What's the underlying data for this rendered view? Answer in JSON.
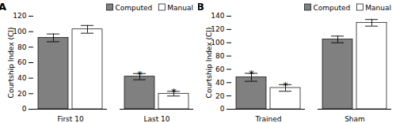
{
  "chart_data": [
    {
      "type": "bar",
      "title": "A",
      "categories": [
        "First 10",
        "Last 10"
      ],
      "series": [
        {
          "name": "Computed",
          "color": "#808080",
          "values": [
            92,
            42
          ],
          "errors": [
            5,
            4
          ]
        },
        {
          "name": "Manual",
          "color": "#ffffff",
          "values": [
            103,
            20
          ],
          "errors": [
            5,
            3
          ]
        }
      ],
      "annotations": [
        {
          "text": "*",
          "category": "Last 10",
          "series": "Computed"
        },
        {
          "text": "*",
          "category": "Last 10",
          "series": "Manual"
        }
      ],
      "ylabel": "Courtship Index (CI)",
      "ylim": [
        0,
        120
      ],
      "yticks": [
        0,
        20,
        40,
        60,
        80,
        100,
        120
      ],
      "legend": "upper right"
    },
    {
      "type": "bar",
      "title": "B",
      "categories": [
        "Trained",
        "Sham"
      ],
      "series": [
        {
          "name": "Computed",
          "color": "#808080",
          "values": [
            48,
            105
          ],
          "errors": [
            6,
            5
          ]
        },
        {
          "name": "Manual",
          "color": "#ffffff",
          "values": [
            32,
            130
          ],
          "errors": [
            5,
            5
          ]
        }
      ],
      "annotations": [
        {
          "text": "*",
          "category": "Trained",
          "series": "Computed"
        },
        {
          "text": "*",
          "category": "Trained",
          "series": "Manual"
        }
      ],
      "ylabel": "Courtship Index (CI)",
      "ylim": [
        0,
        140
      ],
      "yticks": [
        0,
        20,
        40,
        60,
        80,
        100,
        120,
        140
      ],
      "legend": "upper right"
    }
  ]
}
